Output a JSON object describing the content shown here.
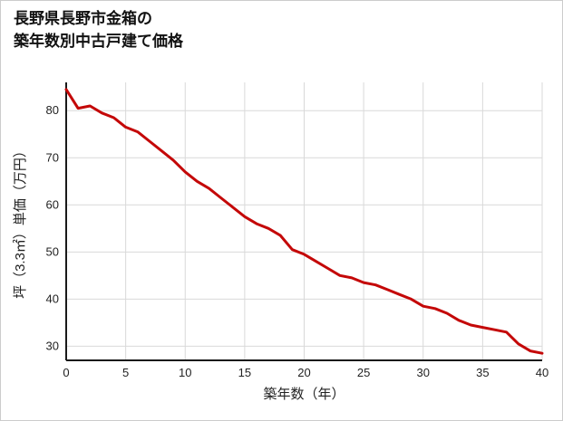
{
  "title": {
    "line1": "長野県長野市金箱の",
    "line2": "築年数別中古戸建て価格"
  },
  "chart_data": {
    "type": "line",
    "title": "長野県長野市金箱の築年数別中古戸建て価格",
    "xlabel": "築年数（年）",
    "ylabel": "坪（3.3㎡）単価（万円）",
    "x": [
      0,
      1,
      2,
      3,
      4,
      5,
      6,
      7,
      8,
      9,
      10,
      11,
      12,
      13,
      14,
      15,
      16,
      17,
      18,
      19,
      20,
      21,
      22,
      23,
      24,
      25,
      26,
      27,
      28,
      29,
      30,
      31,
      32,
      33,
      34,
      35,
      36,
      37,
      38,
      39,
      40
    ],
    "values": [
      84.5,
      80.5,
      81,
      79.5,
      78.5,
      76.5,
      75.5,
      73.5,
      71.5,
      69.5,
      67,
      65,
      63.5,
      61.5,
      59.5,
      57.5,
      56,
      55,
      53.5,
      50.5,
      49.5,
      48,
      46.5,
      45,
      44.5,
      43.5,
      43,
      42,
      41,
      40,
      38.5,
      38,
      37,
      35.5,
      34.5,
      34,
      33.5,
      33,
      30.5,
      29,
      28.5
    ],
    "xlim": [
      0,
      40
    ],
    "ylim": [
      27,
      86
    ],
    "x_ticks": [
      0,
      5,
      10,
      15,
      20,
      25,
      30,
      35,
      40
    ],
    "y_ticks": [
      30,
      40,
      50,
      60,
      70,
      80
    ],
    "grid": true,
    "legend": "none",
    "line_color": "#c40808",
    "axis_color": "#1a1a1a",
    "grid_color": "#d9d9d9",
    "tick_label_color": "#222222",
    "axis_label_color": "#222222"
  }
}
